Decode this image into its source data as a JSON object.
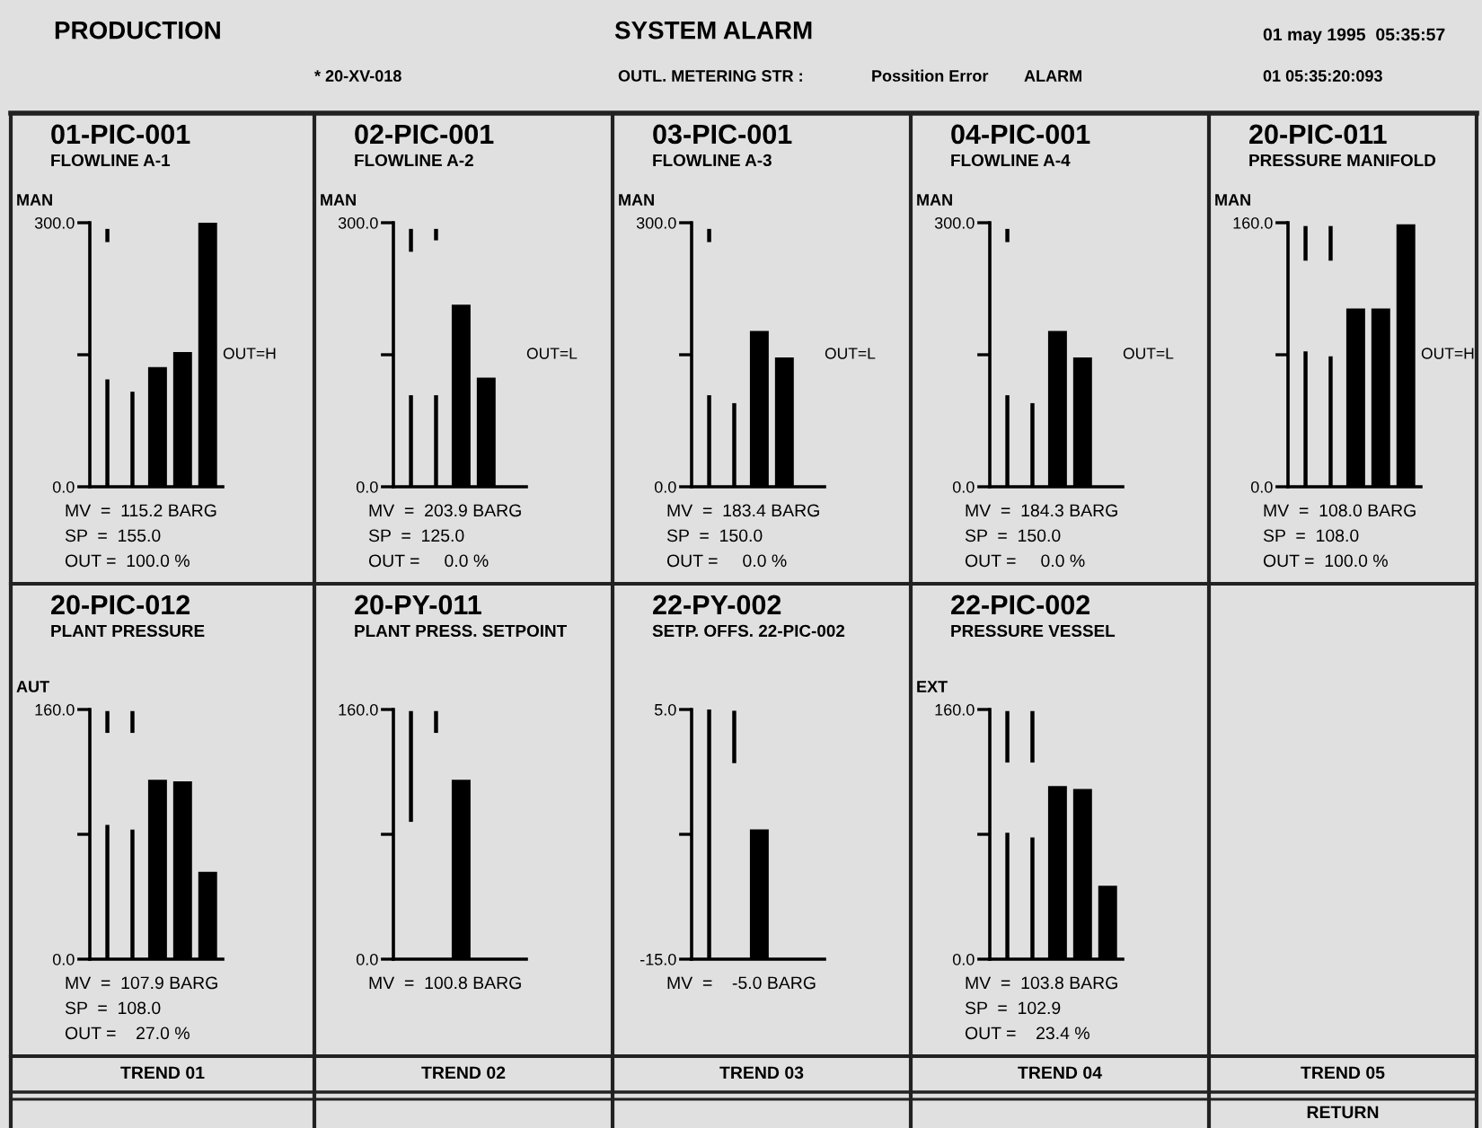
{
  "chart_data": [
    {
      "type": "other",
      "title": "SYSTEM ALARM",
      "annotations": [
        "PRODUCTION",
        "01 may 1995  05:35:57",
        "* 20-XV-018",
        "OUTL. METERING STR :",
        "Possition Error",
        "ALARM",
        "01 05:35:20:093"
      ]
    },
    {
      "type": "bar",
      "title": "01-PIC-001",
      "subtitle": "FLOWLINE A-1",
      "ylabel": "MAN",
      "y2label": "OUT=H",
      "categories": [
        null,
        null,
        null,
        null,
        null
      ],
      "ylim": [
        0,
        300
      ],
      "yticks": [
        {
          "value": 0,
          "label": "0.0"
        },
        {
          "value": 150,
          "label": null
        },
        {
          "value": 300,
          "label": "300.0"
        }
      ],
      "tick_labels": "y",
      "series": [
        {
          "color": "#000000",
          "values": [
            122,
            108,
            null,
            null,
            null
          ]
        },
        {
          "color": "#000000",
          "values": [
            null,
            null,
            136,
            153,
            300
          ]
        },
        {
          "color": "#000000",
          "values": [
            15,
            null,
            null,
            null,
            null
          ],
          "base": [
            278,
            null,
            null,
            null,
            null
          ]
        }
      ],
      "annotations": [
        "MV  =  115.2 BARG",
        "SP  =  155.0",
        "OUT =  100.0 %"
      ]
    },
    {
      "type": "bar",
      "title": "02-PIC-001",
      "subtitle": "FLOWLINE A-2",
      "ylabel": "MAN",
      "y2label": "OUT=L",
      "categories": [
        null,
        null,
        null,
        null,
        null
      ],
      "ylim": [
        0,
        300
      ],
      "yticks": [
        {
          "value": 0,
          "label": "0.0"
        },
        {
          "value": 150,
          "label": null
        },
        {
          "value": 300,
          "label": "300.0"
        }
      ],
      "tick_labels": "y",
      "series": [
        {
          "color": "#000000",
          "values": [
            104,
            104,
            null,
            null,
            null
          ]
        },
        {
          "color": "#000000",
          "values": [
            null,
            null,
            207,
            124,
            0
          ]
        },
        {
          "color": "#000000",
          "values": [
            26,
            13,
            null,
            null,
            null
          ],
          "base": [
            267,
            280,
            null,
            null,
            null
          ]
        }
      ],
      "annotations": [
        "MV  =  203.9 BARG",
        "SP  =  125.0",
        "OUT =     0.0 %"
      ]
    },
    {
      "type": "bar",
      "title": "03-PIC-001",
      "subtitle": "FLOWLINE A-3",
      "ylabel": "MAN",
      "y2label": "OUT=L",
      "categories": [
        null,
        null,
        null,
        null,
        null
      ],
      "ylim": [
        0,
        300
      ],
      "yticks": [
        {
          "value": 0,
          "label": "0.0"
        },
        {
          "value": 150,
          "label": null
        },
        {
          "value": 300,
          "label": "300.0"
        }
      ],
      "tick_labels": "y",
      "series": [
        {
          "color": "#000000",
          "values": [
            104,
            95,
            null,
            null,
            null
          ]
        },
        {
          "color": "#000000",
          "values": [
            null,
            null,
            177,
            147,
            0
          ]
        },
        {
          "color": "#000000",
          "values": [
            15,
            null,
            null,
            null,
            null
          ],
          "base": [
            278,
            null,
            null,
            null,
            null
          ]
        }
      ],
      "annotations": [
        "MV  =  183.4 BARG",
        "SP  =  150.0",
        "OUT =     0.0 %"
      ]
    },
    {
      "type": "bar",
      "title": "04-PIC-001",
      "subtitle": "FLOWLINE A-4",
      "ylabel": "MAN",
      "y2label": "OUT=L",
      "categories": [
        null,
        null,
        null,
        null,
        null
      ],
      "ylim": [
        0,
        300
      ],
      "yticks": [
        {
          "value": 0,
          "label": "0.0"
        },
        {
          "value": 150,
          "label": null
        },
        {
          "value": 300,
          "label": "300.0"
        }
      ],
      "tick_labels": "y",
      "series": [
        {
          "color": "#000000",
          "values": [
            104,
            95,
            null,
            null,
            null
          ]
        },
        {
          "color": "#000000",
          "values": [
            null,
            null,
            177,
            147,
            0
          ]
        },
        {
          "color": "#000000",
          "values": [
            15,
            null,
            null,
            null,
            null
          ],
          "base": [
            278,
            null,
            null,
            null,
            null
          ]
        }
      ],
      "annotations": [
        "MV  =  184.3 BARG",
        "SP  =  150.0",
        "OUT =     0.0 %"
      ]
    },
    {
      "type": "bar",
      "title": "20-PIC-011",
      "subtitle": "PRESSURE MANIFOLD",
      "ylabel": "MAN",
      "y2label": "OUT=H",
      "categories": [
        null,
        null,
        null,
        null,
        null
      ],
      "ylim": [
        0,
        160
      ],
      "yticks": [
        {
          "value": 0,
          "label": "0.0"
        },
        {
          "value": 80,
          "label": null
        },
        {
          "value": 160,
          "label": "160.0"
        }
      ],
      "tick_labels": "y",
      "series": [
        {
          "color": "#000000",
          "values": [
            82,
            79,
            null,
            null,
            null
          ]
        },
        {
          "color": "#000000",
          "values": [
            null,
            null,
            108,
            108,
            159
          ]
        },
        {
          "color": "#000000",
          "values": [
            21,
            21,
            null,
            null,
            null
          ],
          "base": [
            137,
            137,
            null,
            null,
            null
          ]
        }
      ],
      "annotations": [
        "MV  =  108.0 BARG",
        "SP  =  108.0",
        "OUT =  100.0 %"
      ]
    },
    {
      "type": "bar",
      "title": "20-PIC-012",
      "subtitle": "PLANT PRESSURE",
      "ylabel": "AUT",
      "categories": [
        null,
        null,
        null,
        null,
        null
      ],
      "ylim": [
        0,
        160
      ],
      "yticks": [
        {
          "value": 0,
          "label": "0.0"
        },
        {
          "value": 80,
          "label": null
        },
        {
          "value": 160,
          "label": "160.0"
        }
      ],
      "tick_labels": "y",
      "series": [
        {
          "color": "#000000",
          "values": [
            86,
            83,
            null,
            null,
            null
          ]
        },
        {
          "color": "#000000",
          "values": [
            null,
            null,
            115,
            114,
            56
          ]
        },
        {
          "color": "#000000",
          "values": [
            14,
            14,
            null,
            null,
            null
          ],
          "base": [
            145,
            145,
            null,
            null,
            null
          ]
        }
      ],
      "annotations": [
        "MV  =  107.9 BARG",
        "SP  =  108.0",
        "OUT =    27.0 %"
      ]
    },
    {
      "type": "bar",
      "title": "20-PY-011",
      "subtitle": "PLANT PRESS. SETPOINT",
      "categories": [
        null,
        null,
        null,
        null,
        null
      ],
      "ylim": [
        0,
        160
      ],
      "yticks": [
        {
          "value": 0,
          "label": "0.0"
        },
        {
          "value": 80,
          "label": null
        },
        {
          "value": 160,
          "label": "160.0"
        }
      ],
      "tick_labels": "y",
      "series": [
        {
          "color": "#000000",
          "values": [
            null,
            null,
            115,
            null,
            null
          ]
        },
        {
          "color": "#000000",
          "values": [
            71,
            14,
            null,
            null,
            null
          ],
          "base": [
            88,
            145,
            null,
            null,
            null
          ]
        }
      ],
      "annotations": [
        "MV  =  100.8 BARG"
      ]
    },
    {
      "type": "bar",
      "title": "22-PY-002",
      "subtitle": "SETP. OFFS. 22-PIC-002",
      "categories": [
        null,
        null,
        null,
        null,
        null
      ],
      "ylim": [
        -15,
        5
      ],
      "yticks": [
        {
          "value": -15,
          "label": "-15.0"
        },
        {
          "value": -5,
          "label": null
        },
        {
          "value": 5,
          "label": "5.0"
        }
      ],
      "tick_labels": "y",
      "series": [
        {
          "color": "#000000",
          "values": [
            20,
            null,
            null,
            null,
            null
          ],
          "base": [
            -15,
            null,
            null,
            null,
            null
          ]
        },
        {
          "color": "#000000",
          "values": [
            null,
            null,
            10.4,
            null,
            null
          ],
          "base": [
            null,
            null,
            -15,
            null,
            null
          ]
        },
        {
          "color": "#000000",
          "values": [
            null,
            4.2,
            null,
            null,
            null
          ],
          "base": [
            null,
            0.7,
            null,
            null,
            null
          ]
        }
      ],
      "annotations": [
        "MV  =    -5.0 BARG"
      ]
    },
    {
      "type": "bar",
      "title": "22-PIC-002",
      "subtitle": "PRESSURE VESSEL",
      "ylabel": "EXT",
      "categories": [
        null,
        null,
        null,
        null,
        null
      ],
      "ylim": [
        0,
        160
      ],
      "yticks": [
        {
          "value": 0,
          "label": "0.0"
        },
        {
          "value": 80,
          "label": null
        },
        {
          "value": 160,
          "label": "160.0"
        }
      ],
      "tick_labels": "y",
      "series": [
        {
          "color": "#000000",
          "values": [
            81,
            78,
            null,
            null,
            null
          ]
        },
        {
          "color": "#000000",
          "values": [
            null,
            null,
            111,
            109,
            47
          ]
        },
        {
          "color": "#000000",
          "values": [
            33,
            33,
            null,
            null,
            null
          ],
          "base": [
            126,
            126,
            null,
            null,
            null
          ]
        }
      ],
      "annotations": [
        "MV  =  103.8 BARG",
        "SP  =  102.9",
        "OUT =    23.4 %"
      ]
    },
    {
      "type": "other",
      "annotations": [
        "TREND 01",
        "TREND 02",
        "TREND 03",
        "TREND 04",
        "TREND 05",
        "RETURN"
      ]
    }
  ]
}
